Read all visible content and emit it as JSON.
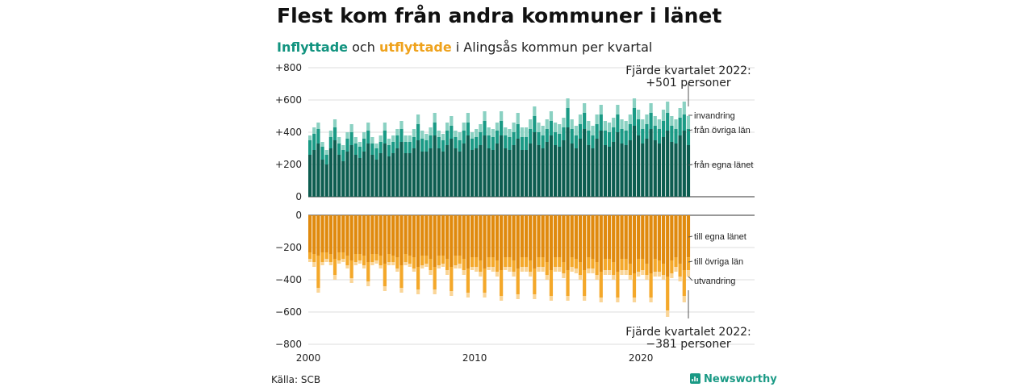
{
  "title": "Flest kom från andra kommuner i länet",
  "subtitle": {
    "part1": "Inflyttade",
    "part2": " och ",
    "part3": "utflyttade",
    "part4": " i Alingsås kommun per kvartal"
  },
  "source": "Källa: SCB",
  "brand": {
    "name": "Newsworthy"
  },
  "colors": {
    "in_egna": "#0d5d50",
    "in_ovriga": "#1a9a85",
    "in_invandring": "#8ad1c2",
    "out_egna": "#e08a0e",
    "out_ovriga": "#f4a82a",
    "out_utvandring": "#fad597",
    "subtitle_in": "#11937f",
    "subtitle_out": "#efa21c",
    "brand": "#1a9a85"
  },
  "annotations": {
    "top_line1": "Fjärde kvartalet 2022:",
    "top_line2": "+501 personer",
    "bottom_line1": "Fjärde kvartalet 2022:",
    "bottom_line2": "−381 personer"
  },
  "segment_labels": {
    "in_invandring": "invandring",
    "in_ovriga": "från övriga län",
    "in_egna": "från egna länet",
    "out_egna": "till egna länet",
    "out_ovriga": "till övriga län",
    "out_utvandring": "utvandring"
  },
  "chart_data": {
    "type": "bar",
    "stacked": true,
    "x_start": "2000 Q1",
    "x_end": "2022 Q4",
    "x_ticks": [
      "2000",
      "2010",
      "2020"
    ],
    "y_ticks_top": [
      "+800",
      "+600",
      "+400",
      "+200",
      "0"
    ],
    "y_ticks_bottom": [
      "0",
      "−200",
      "−400",
      "−600",
      "−800"
    ],
    "ylim_top": [
      0,
      800
    ],
    "ylim_bottom": [
      -800,
      0
    ],
    "grid": true,
    "inflyttade": {
      "egna_lanet": [
        260,
        290,
        330,
        230,
        200,
        300,
        350,
        260,
        220,
        280,
        320,
        260,
        240,
        280,
        330,
        260,
        230,
        270,
        330,
        250,
        270,
        300,
        340,
        270,
        270,
        300,
        350,
        280,
        280,
        300,
        380,
        300,
        280,
        320,
        360,
        300,
        280,
        330,
        380,
        290,
        300,
        320,
        380,
        300,
        290,
        330,
        380,
        300,
        290,
        320,
        360,
        290,
        290,
        330,
        400,
        320,
        300,
        340,
        380,
        320,
        310,
        350,
        430,
        330,
        300,
        360,
        420,
        320,
        300,
        360,
        410,
        320,
        310,
        340,
        400,
        330,
        320,
        350,
        440,
        380,
        330,
        360,
        420,
        350,
        330,
        370,
        410,
        340,
        330,
        380,
        410,
        320
      ],
      "ovriga_lan": [
        90,
        100,
        90,
        80,
        60,
        70,
        80,
        70,
        70,
        80,
        80,
        70,
        70,
        80,
        80,
        70,
        70,
        70,
        80,
        70,
        70,
        80,
        80,
        70,
        70,
        70,
        100,
        80,
        70,
        80,
        80,
        70,
        70,
        90,
        80,
        70,
        70,
        80,
        80,
        70,
        70,
        80,
        90,
        80,
        80,
        80,
        90,
        80,
        80,
        80,
        90,
        80,
        80,
        90,
        100,
        80,
        80,
        80,
        90,
        80,
        80,
        80,
        120,
        90,
        80,
        90,
        100,
        90,
        80,
        90,
        100,
        90,
        90,
        90,
        110,
        90,
        90,
        100,
        110,
        100,
        90,
        90,
        100,
        90,
        90,
        100,
        110,
        100,
        90,
        110,
        100,
        100
      ],
      "invandring": [
        30,
        40,
        40,
        30,
        30,
        40,
        50,
        40,
        30,
        40,
        50,
        40,
        30,
        40,
        50,
        40,
        30,
        40,
        50,
        40,
        40,
        40,
        50,
        40,
        40,
        50,
        60,
        50,
        40,
        50,
        60,
        40,
        40,
        50,
        60,
        40,
        50,
        50,
        60,
        40,
        50,
        50,
        60,
        50,
        50,
        50,
        60,
        50,
        50,
        60,
        70,
        60,
        60,
        60,
        60,
        60,
        60,
        60,
        60,
        60,
        60,
        60,
        60,
        60,
        60,
        60,
        60,
        60,
        60,
        60,
        60,
        60,
        60,
        60,
        60,
        60,
        60,
        60,
        60,
        60,
        60,
        60,
        60,
        60,
        60,
        70,
        70,
        60,
        60,
        60,
        80,
        81
      ]
    },
    "utflyttade": {
      "egna_lanet": [
        -230,
        -240,
        -250,
        -230,
        -230,
        -240,
        -270,
        -230,
        -230,
        -250,
        -280,
        -240,
        -240,
        -250,
        -290,
        -240,
        -240,
        -250,
        -300,
        -240,
        -250,
        -260,
        -310,
        -240,
        -250,
        -260,
        -320,
        -250,
        -250,
        -270,
        -320,
        -250,
        -250,
        -270,
        -320,
        -250,
        -250,
        -270,
        -330,
        -260,
        -260,
        -280,
        -330,
        -260,
        -260,
        -280,
        -340,
        -260,
        -260,
        -280,
        -330,
        -260,
        -260,
        -280,
        -330,
        -260,
        -260,
        -290,
        -340,
        -260,
        -260,
        -290,
        -340,
        -260,
        -270,
        -290,
        -340,
        -260,
        -270,
        -290,
        -350,
        -270,
        -270,
        -290,
        -350,
        -270,
        -270,
        -300,
        -360,
        -270,
        -270,
        -300,
        -360,
        -270,
        -280,
        -300,
        -380,
        -280,
        -260,
        -300,
        -340,
        -261
      ],
      "ovriga_lan": [
        -40,
        -50,
        -200,
        -60,
        -40,
        -50,
        -100,
        -50,
        -40,
        -60,
        -110,
        -50,
        -40,
        -60,
        -120,
        -50,
        -40,
        -60,
        -140,
        -50,
        -40,
        -70,
        -140,
        -50,
        -50,
        -70,
        -140,
        -60,
        -50,
        -70,
        -140,
        -60,
        -50,
        -70,
        -150,
        -60,
        -50,
        -70,
        -150,
        -60,
        -60,
        -70,
        -150,
        -60,
        -60,
        -70,
        -160,
        -60,
        -60,
        -70,
        -160,
        -60,
        -60,
        -70,
        -160,
        -60,
        -60,
        -80,
        -160,
        -60,
        -60,
        -70,
        -160,
        -60,
        -60,
        -80,
        -160,
        -70,
        -60,
        -80,
        -160,
        -70,
        -70,
        -80,
        -160,
        -70,
        -70,
        -70,
        -150,
        -80,
        -70,
        -70,
        -150,
        -80,
        -70,
        -70,
        -210,
        -80,
        -60,
        -80,
        -160,
        -80
      ],
      "utvandring": [
        -20,
        -30,
        -30,
        -20,
        -20,
        -20,
        -30,
        -20,
        -20,
        -20,
        -30,
        -20,
        -20,
        -20,
        -30,
        -20,
        -20,
        -20,
        -30,
        -20,
        -20,
        -20,
        -30,
        -20,
        -20,
        -20,
        -30,
        -20,
        -20,
        -30,
        -30,
        -20,
        -20,
        -30,
        -30,
        -20,
        -30,
        -30,
        -30,
        -20,
        -30,
        -30,
        -30,
        -20,
        -30,
        -30,
        -30,
        -20,
        -30,
        -30,
        -30,
        -30,
        -30,
        -30,
        -30,
        -30,
        -30,
        -30,
        -30,
        -30,
        -30,
        -30,
        -30,
        -30,
        -30,
        -30,
        -30,
        -30,
        -30,
        -30,
        -30,
        -30,
        -30,
        -30,
        -30,
        -30,
        -30,
        -30,
        -30,
        -30,
        -30,
        -30,
        -30,
        -30,
        -30,
        -30,
        -40,
        -30,
        -30,
        -30,
        -40,
        -40
      ]
    }
  }
}
